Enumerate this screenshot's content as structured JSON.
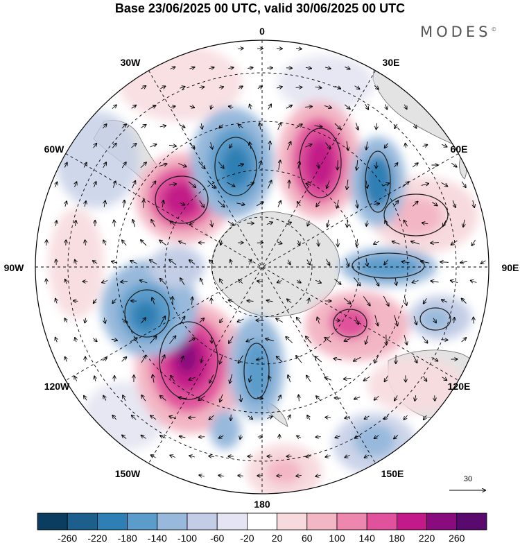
{
  "title": "Base 23/06/2025 00 UTC, valid 30/06/2025 00 UTC",
  "brand": "MODES",
  "brand_mark": "©",
  "longitude_labels": {
    "top": "0",
    "e30": "30E",
    "e60": "60E",
    "e90": "90E",
    "e120": "120E",
    "e150": "150E",
    "bottom": "180",
    "w150": "150W",
    "w120": "120W",
    "w90": "90W",
    "w60": "60W",
    "w30": "30W"
  },
  "reference_vector_label": "30",
  "colorbar": {
    "labels": [
      "-260",
      "-220",
      "-180",
      "-140",
      "-100",
      "-60",
      "-20",
      "20",
      "60",
      "100",
      "140",
      "180",
      "220",
      "260"
    ],
    "colors": [
      "#0b3d5e",
      "#1c5f8c",
      "#2e7fb4",
      "#5b9ccb",
      "#98b9dc",
      "#c3cde6",
      "#e4e4f2",
      "#ffffff",
      "#f7dade",
      "#f3b6c4",
      "#ee86ae",
      "#e0529c",
      "#c21a88",
      "#8a0b7e",
      "#5a0a6e"
    ]
  }
}
